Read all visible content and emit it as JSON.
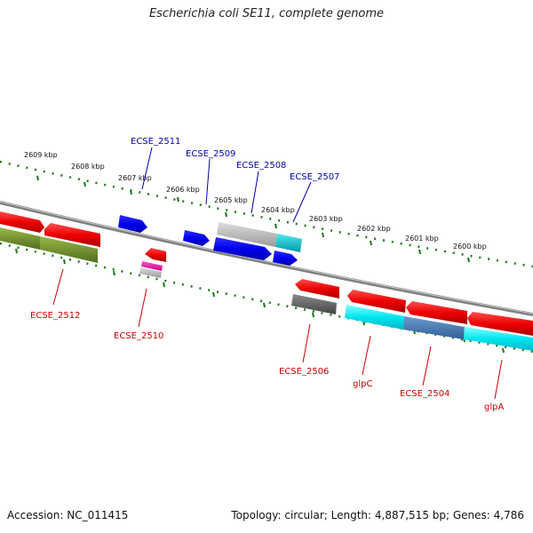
{
  "title": "Escherichia coli SE11, complete genome",
  "footer": {
    "accession": "Accession: NC_011415",
    "info": "Topology: circular; Length: 4,887,515 bp; Genes: 4,786"
  },
  "scale_labels": [
    "2609 kbp",
    "2608 kbp",
    "2607 kbp",
    "2606 kbp",
    "2605 kbp",
    "2604 kbp",
    "2603 kbp",
    "2602 kbp",
    "2601 kbp",
    "2600 kbp"
  ],
  "gene_labels_top": [
    "ECSE_2511",
    "ECSE_2509",
    "ECSE_2508",
    "ECSE_2507"
  ],
  "gene_labels_bottom": [
    "ECSE_2512",
    "ECSE_2510",
    "ECSE_2506",
    "glpC",
    "ECSE_2504",
    "glpA"
  ],
  "colors": {
    "forward_gene": "#0000ee",
    "reverse_gene": "#ee0000",
    "tick": "#1a7a1a",
    "backbone": "#808080",
    "label_blue": "#0000aa",
    "label_red": "#cc0000"
  }
}
